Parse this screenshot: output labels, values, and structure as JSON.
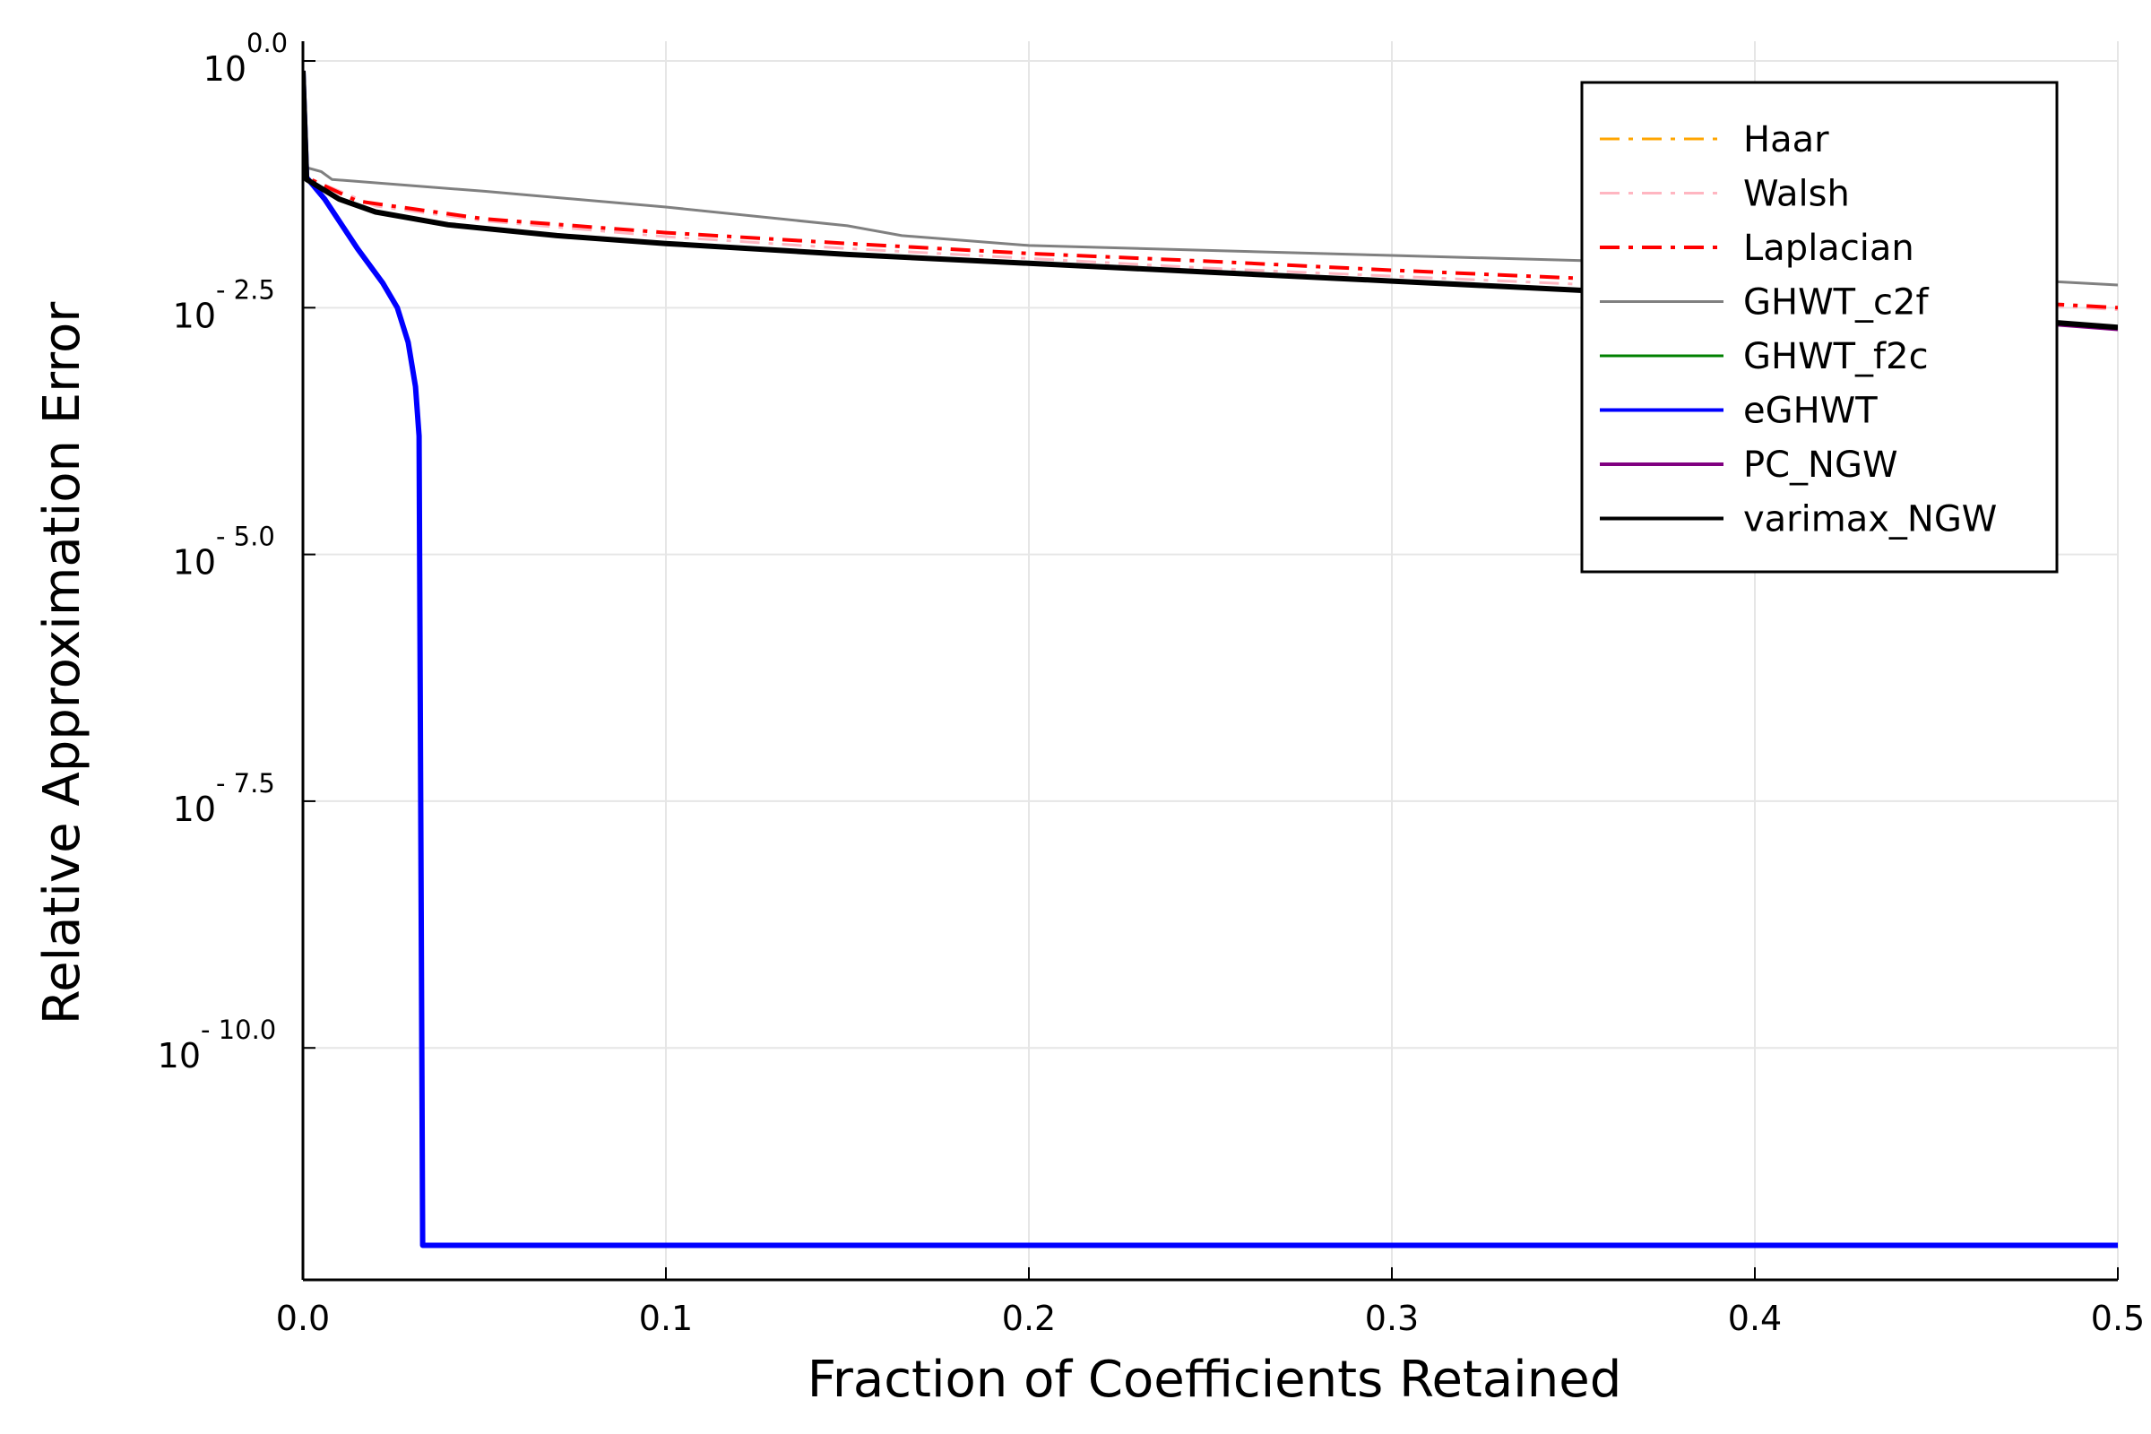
{
  "chart_data": {
    "type": "line",
    "title": "",
    "xlabel": "Fraction of Coefficients Retained",
    "ylabel": "Relative Approximation Error",
    "xlim": [
      0,
      0.5
    ],
    "ylim_log10": [
      -12.35,
      0.2
    ],
    "yscale": "log10",
    "grid": true,
    "legend_position": "top-right",
    "x_ticks": [
      {
        "value": 0.0,
        "label": "0.0"
      },
      {
        "value": 0.1,
        "label": "0.1"
      },
      {
        "value": 0.2,
        "label": "0.2"
      },
      {
        "value": 0.3,
        "label": "0.3"
      },
      {
        "value": 0.4,
        "label": "0.4"
      },
      {
        "value": 0.5,
        "label": "0.5"
      }
    ],
    "y_ticks": [
      {
        "value": 0.0,
        "base": "10",
        "exp": "0.0"
      },
      {
        "value": -2.5,
        "base": "10",
        "exp": "- 2.5"
      },
      {
        "value": -5.0,
        "base": "10",
        "exp": "- 5.0"
      },
      {
        "value": -7.5,
        "base": "10",
        "exp": "- 7.5"
      },
      {
        "value": -10.0,
        "base": "10",
        "exp": "- 10.0"
      }
    ],
    "series": [
      {
        "name": "Haar",
        "color": "#FFA500",
        "dash": "dashdot",
        "width": 3,
        "x": [
          0,
          0.001,
          0.006,
          0.015,
          0.022,
          0.026,
          0.029,
          0.031,
          0.032,
          0.033,
          0.5
        ],
        "y": [
          -0.1,
          -1.18,
          -1.4,
          -1.9,
          -2.25,
          -2.5,
          -2.85,
          -3.3,
          -3.8,
          -12.0,
          -12.0
        ]
      },
      {
        "name": "Walsh",
        "color": "#FFB6C1",
        "dash": "dashdot",
        "width": 3,
        "x": [
          0,
          0.001,
          0.02,
          0.05,
          0.1,
          0.15,
          0.2,
          0.25,
          0.3,
          0.35,
          0.4,
          0.45,
          0.5
        ],
        "y": [
          -0.1,
          -1.18,
          -1.47,
          -1.62,
          -1.78,
          -1.9,
          -2.0,
          -2.1,
          -2.18,
          -2.26,
          -2.34,
          -2.42,
          -2.52
        ]
      },
      {
        "name": "Laplacian",
        "color": "#FF0000",
        "dash": "dashdot",
        "width": 4,
        "x": [
          0,
          0.001,
          0.015,
          0.05,
          0.1,
          0.15,
          0.2,
          0.25,
          0.3,
          0.35,
          0.4,
          0.45,
          0.5
        ],
        "y": [
          -0.1,
          -1.18,
          -1.42,
          -1.6,
          -1.74,
          -1.85,
          -1.95,
          -2.03,
          -2.12,
          -2.2,
          -2.3,
          -2.4,
          -2.5
        ]
      },
      {
        "name": "GHWT_c2f",
        "color": "#808080",
        "dash": "solid",
        "width": 3,
        "x": [
          0,
          0.001,
          0.005,
          0.008,
          0.05,
          0.1,
          0.15,
          0.165,
          0.2,
          0.3,
          0.4,
          0.5
        ],
        "y": [
          -0.1,
          -1.08,
          -1.12,
          -1.2,
          -1.32,
          -1.48,
          -1.67,
          -1.77,
          -1.87,
          -1.97,
          -2.07,
          -2.27
        ]
      },
      {
        "name": "GHWT_f2c",
        "color": "#008000",
        "dash": "solid",
        "width": 3,
        "x": [
          0,
          0.001,
          0.006,
          0.015,
          0.022,
          0.026,
          0.029,
          0.031,
          0.032,
          0.033,
          0.5
        ],
        "y": [
          -0.1,
          -1.18,
          -1.4,
          -1.9,
          -2.25,
          -2.5,
          -2.85,
          -3.3,
          -3.8,
          -12.0,
          -12.0
        ]
      },
      {
        "name": "eGHWT",
        "color": "#0000FF",
        "dash": "solid",
        "width": 6,
        "x": [
          0,
          0.001,
          0.006,
          0.015,
          0.022,
          0.026,
          0.029,
          0.031,
          0.032,
          0.033,
          0.5
        ],
        "y": [
          -0.1,
          -1.18,
          -1.4,
          -1.9,
          -2.25,
          -2.5,
          -2.85,
          -3.3,
          -3.8,
          -12.0,
          -12.0
        ]
      },
      {
        "name": "PC_NGW",
        "color": "#800080",
        "dash": "solid",
        "width": 4,
        "x": [
          0,
          0.001,
          0.01,
          0.02,
          0.04,
          0.07,
          0.1,
          0.15,
          0.2,
          0.25,
          0.3,
          0.35,
          0.4,
          0.45,
          0.5
        ],
        "y": [
          -0.1,
          -1.2,
          -1.4,
          -1.53,
          -1.66,
          -1.77,
          -1.85,
          -1.96,
          -2.05,
          -2.14,
          -2.23,
          -2.32,
          -2.43,
          -2.58,
          -2.72
        ]
      },
      {
        "name": "varimax_NGW",
        "color": "#000000",
        "dash": "solid",
        "width": 6,
        "x": [
          0,
          0.001,
          0.01,
          0.02,
          0.04,
          0.07,
          0.1,
          0.15,
          0.2,
          0.25,
          0.3,
          0.35,
          0.4,
          0.45,
          0.5
        ],
        "y": [
          -0.1,
          -1.2,
          -1.4,
          -1.53,
          -1.66,
          -1.77,
          -1.85,
          -1.96,
          -2.05,
          -2.14,
          -2.23,
          -2.32,
          -2.42,
          -2.56,
          -2.7
        ]
      }
    ]
  }
}
